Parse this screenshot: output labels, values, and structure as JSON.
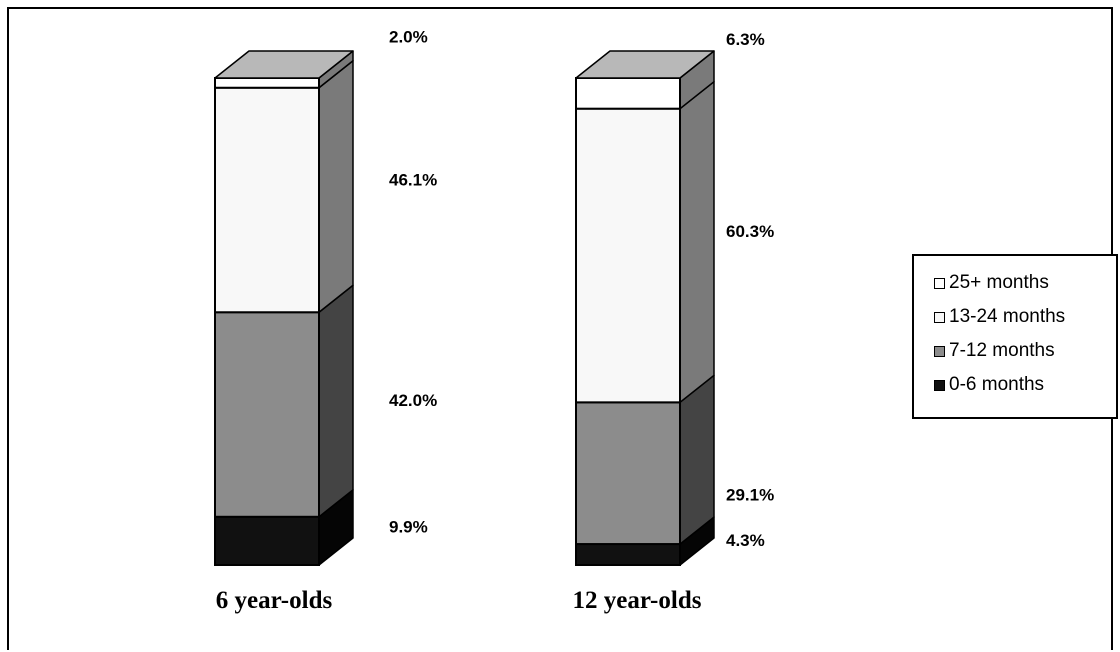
{
  "chart_data": {
    "type": "bar",
    "stacked": true,
    "three_d": true,
    "categories": [
      "6 year-olds",
      "12 year-olds"
    ],
    "series": [
      {
        "name": "0-6 months",
        "values": [
          9.9,
          4.3
        ],
        "labels": [
          "9.9%",
          "4.3%"
        ],
        "color": "#111111",
        "color_side": "#050505",
        "color_top": "#303030"
      },
      {
        "name": "7-12 months",
        "values": [
          42.0,
          29.1
        ],
        "labels": [
          "42.0%",
          "29.1%"
        ],
        "color": "#8c8c8c",
        "color_side": "#444444",
        "color_top": "#a0a0a0"
      },
      {
        "name": "13-24 months",
        "values": [
          46.1,
          60.3
        ],
        "labels": [
          "46.1%",
          "60.3%"
        ],
        "color": "#f8f8f8",
        "color_side": "#7a7a7a",
        "color_top": "#b8b8b8"
      },
      {
        "name": "25+ months",
        "values": [
          2.0,
          6.3
        ],
        "labels": [
          "2.0%",
          "6.3%"
        ],
        "color": "#ffffff",
        "color_side": "#7a7a7a",
        "color_top": "#b8b8b8"
      }
    ],
    "ylim": [
      0,
      100
    ],
    "legend_position": "right",
    "grid": false
  },
  "legend_order": [
    3,
    2,
    1,
    0
  ]
}
